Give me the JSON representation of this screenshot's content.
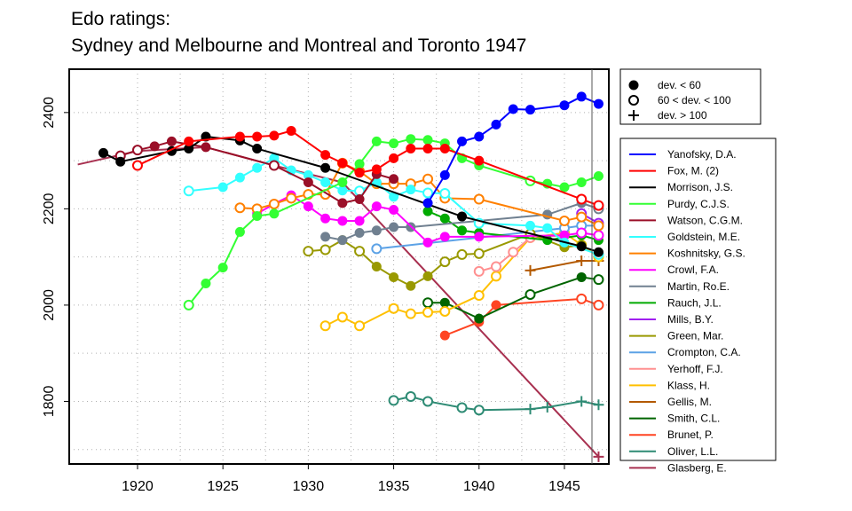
{
  "title_line1": "Edo ratings:",
  "title_line2": "Sydney and Melbourne and Montreal and Toronto 1947",
  "chart_data": {
    "type": "line",
    "title": "Edo ratings: Sydney and Melbourne and Montreal and Toronto 1947",
    "xlabel": "",
    "ylabel": "",
    "xlim": [
      1916,
      1947.6
    ],
    "ylim": [
      1670,
      2490
    ],
    "x_ticks": [
      1920,
      1925,
      1930,
      1935,
      1940,
      1945
    ],
    "y_ticks": [
      1800,
      2000,
      2200,
      2400
    ],
    "grid": true,
    "marker_legend": [
      {
        "marker": "filled",
        "label": "dev. < 60"
      },
      {
        "marker": "open",
        "label": "60 < dev. < 100"
      },
      {
        "marker": "plus",
        "label": "dev. > 100"
      }
    ],
    "series": [
      {
        "name": "Yanofsky, D.A.",
        "color": "#0000ff",
        "points": [
          [
            1937,
            2212,
            "f"
          ],
          [
            1938,
            2270,
            "f"
          ],
          [
            1939,
            2340,
            "f"
          ],
          [
            1940,
            2350,
            "f"
          ],
          [
            1941,
            2375,
            "f"
          ],
          [
            1942,
            2407,
            "f"
          ],
          [
            1943,
            2406,
            "f"
          ],
          [
            1945,
            2415,
            "f"
          ],
          [
            1946,
            2433,
            "f"
          ],
          [
            1947,
            2418,
            "f"
          ]
        ]
      },
      {
        "name": "Fox, M. (2)",
        "color": "#ff0000",
        "points": [
          [
            1920,
            2290,
            "o"
          ],
          [
            1923,
            2340,
            "f"
          ],
          [
            1926,
            2350,
            "f"
          ],
          [
            1927,
            2350,
            "f"
          ],
          [
            1928,
            2352,
            "f"
          ],
          [
            1929,
            2362,
            "f"
          ],
          [
            1931,
            2312,
            "f"
          ],
          [
            1932,
            2295,
            "f"
          ],
          [
            1933,
            2275,
            "f"
          ],
          [
            1934,
            2282,
            "f"
          ],
          [
            1935,
            2305,
            "f"
          ],
          [
            1936,
            2325,
            "f"
          ],
          [
            1937,
            2325,
            "f"
          ],
          [
            1938,
            2325,
            "f"
          ],
          [
            1940,
            2300,
            "f"
          ],
          [
            1946,
            2220,
            "o"
          ],
          [
            1947,
            2207,
            "o"
          ]
        ]
      },
      {
        "name": "Morrison, J.S.",
        "color": "#000000",
        "points": [
          [
            1918,
            2316,
            "f"
          ],
          [
            1919,
            2298,
            "f"
          ],
          [
            1922,
            2320,
            "f"
          ],
          [
            1923,
            2325,
            "f"
          ],
          [
            1924,
            2350,
            "f"
          ],
          [
            1926,
            2342,
            "f"
          ],
          [
            1927,
            2325,
            "f"
          ],
          [
            1931,
            2285,
            "f"
          ],
          [
            1939,
            2184,
            "f"
          ],
          [
            1946,
            2122,
            "f"
          ],
          [
            1947,
            2110,
            "f"
          ]
        ]
      },
      {
        "name": "Purdy, C.J.S.",
        "color": "#33ff33",
        "points": [
          [
            1923,
            2000,
            "o"
          ],
          [
            1924,
            2045,
            "f"
          ],
          [
            1925,
            2078,
            "f"
          ],
          [
            1926,
            2152,
            "f"
          ],
          [
            1927,
            2185,
            "f"
          ],
          [
            1928,
            2190,
            "f"
          ],
          [
            1932,
            2255,
            "f"
          ],
          [
            1933,
            2293,
            "f"
          ],
          [
            1934,
            2340,
            "f"
          ],
          [
            1935,
            2336,
            "f"
          ],
          [
            1936,
            2345,
            "f"
          ],
          [
            1937,
            2343,
            "f"
          ],
          [
            1938,
            2336,
            "f"
          ],
          [
            1939,
            2305,
            "f"
          ],
          [
            1940,
            2290,
            "f"
          ],
          [
            1943,
            2258,
            "o"
          ],
          [
            1944,
            2252,
            "f"
          ],
          [
            1945,
            2245,
            "f"
          ],
          [
            1946,
            2255,
            "f"
          ],
          [
            1947,
            2268,
            "f"
          ]
        ]
      },
      {
        "name": "Watson, C.G.M.",
        "color": "#9a0f28",
        "points": [
          [
            1919,
            2310,
            "o"
          ],
          [
            1920,
            2322,
            "o"
          ],
          [
            1921,
            2330,
            "f"
          ],
          [
            1922,
            2340,
            "f"
          ],
          [
            1924,
            2328,
            "f"
          ],
          [
            1928,
            2290,
            "o"
          ],
          [
            1930,
            2255,
            "f"
          ],
          [
            1932,
            2212,
            "f"
          ],
          [
            1933,
            2220,
            "f"
          ],
          [
            1934,
            2272,
            "f"
          ],
          [
            1935,
            2262,
            "f"
          ]
        ]
      },
      {
        "name": "Goldstein, M.E.",
        "color": "#33ffff",
        "points": [
          [
            1923,
            2237,
            "o"
          ],
          [
            1925,
            2245,
            "f"
          ],
          [
            1926,
            2265,
            "f"
          ],
          [
            1927,
            2285,
            "f"
          ],
          [
            1928,
            2305,
            "f"
          ],
          [
            1929,
            2280,
            "f"
          ],
          [
            1930,
            2270,
            "f"
          ],
          [
            1931,
            2255,
            "f"
          ],
          [
            1932,
            2238,
            "f"
          ],
          [
            1933,
            2237,
            "o"
          ],
          [
            1934,
            2255,
            "f"
          ],
          [
            1935,
            2225,
            "f"
          ],
          [
            1936,
            2240,
            "f"
          ],
          [
            1937,
            2233,
            "o"
          ],
          [
            1938,
            2232,
            "o"
          ],
          [
            1940,
            2170,
            "o"
          ],
          [
            1943,
            2165,
            "f"
          ],
          [
            1944,
            2160,
            "f"
          ],
          [
            1945,
            2130,
            "f"
          ],
          [
            1947,
            2105,
            "o"
          ]
        ]
      },
      {
        "name": "Koshnitsky, G.S.",
        "color": "#ff8000",
        "points": [
          [
            1926,
            2202,
            "o"
          ],
          [
            1927,
            2200,
            "o"
          ],
          [
            1928,
            2210,
            "o"
          ],
          [
            1929,
            2222,
            "o"
          ],
          [
            1930,
            2230,
            "o"
          ],
          [
            1931,
            2230,
            "o"
          ],
          [
            1932,
            2295,
            "o"
          ],
          [
            1933,
            2278,
            "o"
          ],
          [
            1934,
            2252,
            "o"
          ],
          [
            1935,
            2252,
            "o"
          ],
          [
            1936,
            2252,
            "o"
          ],
          [
            1937,
            2262,
            "o"
          ],
          [
            1938,
            2222,
            "o"
          ],
          [
            1940,
            2220,
            "o"
          ],
          [
            1945,
            2175,
            "o"
          ],
          [
            1946,
            2183,
            "o"
          ],
          [
            1947,
            2165,
            "o"
          ]
        ]
      },
      {
        "name": "Crowl, F.A.",
        "color": "#ff00ff",
        "points": [
          [
            1927,
            2190,
            "f"
          ],
          [
            1928,
            2210,
            "f"
          ],
          [
            1929,
            2228,
            "f"
          ],
          [
            1930,
            2205,
            "f"
          ],
          [
            1931,
            2180,
            "f"
          ],
          [
            1932,
            2175,
            "f"
          ],
          [
            1933,
            2175,
            "f"
          ],
          [
            1934,
            2205,
            "f"
          ],
          [
            1935,
            2198,
            "f"
          ],
          [
            1937,
            2130,
            "f"
          ],
          [
            1938,
            2142,
            "f"
          ],
          [
            1940,
            2142,
            "f"
          ],
          [
            1945,
            2145,
            "f"
          ],
          [
            1946,
            2150,
            "o"
          ],
          [
            1947,
            2145,
            "o"
          ]
        ]
      },
      {
        "name": "Martin, Ro.E.",
        "color": "#708090",
        "points": [
          [
            1931,
            2142,
            "f"
          ],
          [
            1932,
            2135,
            "f"
          ],
          [
            1933,
            2150,
            "f"
          ],
          [
            1934,
            2155,
            "f"
          ],
          [
            1935,
            2162,
            "f"
          ],
          [
            1936,
            2162,
            "f"
          ],
          [
            1944,
            2188,
            "f"
          ],
          [
            1946,
            2212,
            "f"
          ],
          [
            1947,
            2200,
            "o"
          ]
        ]
      },
      {
        "name": "Rauch, J.L.",
        "color": "#00aa00",
        "points": [
          [
            1937,
            2195,
            "f"
          ],
          [
            1938,
            2180,
            "f"
          ],
          [
            1939,
            2155,
            "f"
          ],
          [
            1940,
            2150,
            "f"
          ],
          [
            1944,
            2135,
            "f"
          ],
          [
            1946,
            2145,
            "f"
          ],
          [
            1947,
            2135,
            "f"
          ]
        ]
      },
      {
        "name": "Mills, B.Y.",
        "color": "#a020f0",
        "points": [
          [
            1946,
            2190,
            "o"
          ],
          [
            1947,
            2170,
            "o"
          ]
        ]
      },
      {
        "name": "Green, Mar.",
        "color": "#999900",
        "points": [
          [
            1930,
            2112,
            "o"
          ],
          [
            1931,
            2115,
            "o"
          ],
          [
            1932,
            2135,
            "f"
          ],
          [
            1933,
            2112,
            "o"
          ],
          [
            1934,
            2080,
            "f"
          ],
          [
            1935,
            2058,
            "f"
          ],
          [
            1936,
            2040,
            "f"
          ],
          [
            1937,
            2060,
            "f"
          ],
          [
            1938,
            2090,
            "o"
          ],
          [
            1939,
            2105,
            "o"
          ],
          [
            1940,
            2107,
            "o"
          ],
          [
            1943,
            2148,
            "o"
          ],
          [
            1945,
            2120,
            "f"
          ],
          [
            1946,
            2125,
            "f"
          ]
        ]
      },
      {
        "name": "Crompton, C.A.",
        "color": "#5ca2e6",
        "points": [
          [
            1934,
            2117,
            "o"
          ],
          [
            1945,
            2160,
            "o"
          ],
          [
            1946,
            2165,
            "o"
          ],
          [
            1947,
            2165,
            "o"
          ]
        ]
      },
      {
        "name": "Yerhoff, F.J.",
        "color": "#ff9090",
        "points": [
          [
            1940,
            2070,
            "o"
          ],
          [
            1941,
            2080,
            "o"
          ],
          [
            1942,
            2110,
            "o"
          ],
          [
            1943,
            2140,
            "o"
          ],
          [
            1945,
            2145,
            "o"
          ]
        ]
      },
      {
        "name": "Klass, H.",
        "color": "#ffc000",
        "points": [
          [
            1931,
            1957,
            "o"
          ],
          [
            1932,
            1975,
            "o"
          ],
          [
            1933,
            1957,
            "o"
          ],
          [
            1935,
            1993,
            "o"
          ],
          [
            1936,
            1982,
            "o"
          ],
          [
            1937,
            1985,
            "o"
          ],
          [
            1938,
            1987,
            "o"
          ],
          [
            1940,
            2020,
            "o"
          ],
          [
            1941,
            2060,
            "o"
          ],
          [
            1943,
            2140,
            "o"
          ],
          [
            1945,
            2150,
            "o"
          ],
          [
            1946,
            2125,
            "o"
          ],
          [
            1947,
            2100,
            "o"
          ]
        ]
      },
      {
        "name": "Gellis, M.",
        "color": "#b35900",
        "points": [
          [
            1943,
            2072,
            "p"
          ],
          [
            1946,
            2092,
            "p"
          ],
          [
            1947,
            2092,
            "p"
          ]
        ]
      },
      {
        "name": "Smith, C.L.",
        "color": "#006400",
        "points": [
          [
            1937,
            2005,
            "o"
          ],
          [
            1938,
            2005,
            "f"
          ],
          [
            1940,
            1972,
            "f"
          ],
          [
            1943,
            2022,
            "o"
          ],
          [
            1946,
            2058,
            "f"
          ],
          [
            1947,
            2053,
            "o"
          ]
        ]
      },
      {
        "name": "Brunet, P.",
        "color": "#ff4422",
        "points": [
          [
            1938,
            1937,
            "f"
          ],
          [
            1940,
            1965,
            "f"
          ],
          [
            1941,
            2000,
            "f"
          ],
          [
            1946,
            2013,
            "o"
          ],
          [
            1947,
            2000,
            "o"
          ]
        ]
      },
      {
        "name": "Oliver, L.L.",
        "color": "#2e8b74",
        "points": [
          [
            1935,
            1802,
            "o"
          ],
          [
            1936,
            1810,
            "o"
          ],
          [
            1937,
            1800,
            "o"
          ],
          [
            1939,
            1787,
            "o"
          ],
          [
            1940,
            1782,
            "o"
          ],
          [
            1943,
            1784,
            "p"
          ],
          [
            1944,
            1788,
            "p"
          ],
          [
            1946,
            1800,
            "p"
          ],
          [
            1947,
            1793,
            "p"
          ]
        ]
      },
      {
        "name": "Glasberg, E.",
        "color": "#a83050",
        "points": [
          [
            1916.5,
            2292,
            "n"
          ],
          [
            1920,
            2320,
            "n"
          ],
          [
            1924,
            2328,
            "n"
          ],
          [
            1928,
            2290,
            "n"
          ],
          [
            1932,
            2255,
            "n"
          ],
          [
            1947,
            1685,
            "p"
          ]
        ]
      }
    ]
  }
}
